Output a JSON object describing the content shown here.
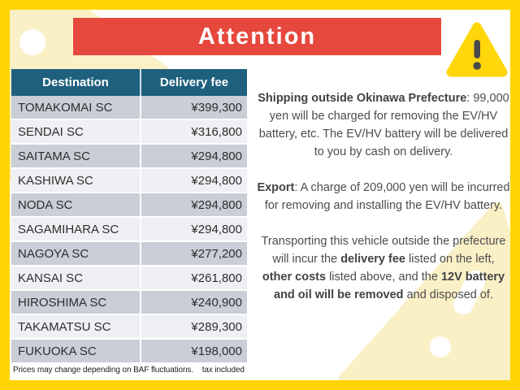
{
  "banner": {
    "title": "Attention"
  },
  "warning_icon": "warning-triangle-icon",
  "table": {
    "headers": [
      "Destination",
      "Delivery fee"
    ],
    "rows": [
      [
        "TOMAKOMAI SC",
        "¥399,300"
      ],
      [
        "SENDAI SC",
        "¥316,800"
      ],
      [
        "SAITAMA SC",
        "¥294,800"
      ],
      [
        "KASHIWA SC",
        "¥294,800"
      ],
      [
        "NODA SC",
        "¥294,800"
      ],
      [
        "SAGAMIHARA SC",
        "¥294,800"
      ],
      [
        "NAGOYA SC",
        "¥277,200"
      ],
      [
        "KANSAI SC",
        "¥261,800"
      ],
      [
        "HIROSHIMA SC",
        "¥240,900"
      ],
      [
        "TAKAMATSU SC",
        "¥289,300"
      ],
      [
        "FUKUOKA SC",
        "¥198,000"
      ]
    ],
    "footnote": "Prices may change depending on BAF fluctuations.    tax included"
  },
  "notice": {
    "paragraphs": [
      [
        {
          "text": "Shipping outside Okinawa Prefecture",
          "bold": true
        },
        {
          "text": ": 99,000 yen will be charged for removing the EV/HV battery, etc.  The EV/HV battery will be delivered to you by cash on delivery.",
          "bold": false
        }
      ],
      [
        {
          "text": "Export",
          "bold": true
        },
        {
          "text": ": A charge of 209,000 yen will be incurred for removing and installing the EV/HV battery.",
          "bold": false
        }
      ],
      [
        {
          "text": "Transporting this vehicle outside the prefecture will incur the ",
          "bold": false
        },
        {
          "text": "delivery fee",
          "bold": true
        },
        {
          "text": " listed on the left, ",
          "bold": false
        },
        {
          "text": "other costs",
          "bold": true
        },
        {
          "text": " listed above, and the ",
          "bold": false
        },
        {
          "text": "12V battery and oil will be removed",
          "bold": true
        },
        {
          "text": " and disposed of.",
          "bold": false
        }
      ]
    ]
  },
  "colors": {
    "frame_yellow": "#ffd400",
    "banner_red": "#e6483d",
    "table_header_blue": "#1f607e",
    "row_dark": "#c9ced7",
    "row_light": "#eef0f3",
    "watermark_cream": "#faf0c6",
    "body_text_gray": "#4c4c4c",
    "warning_yellow": "#ffd60a"
  }
}
